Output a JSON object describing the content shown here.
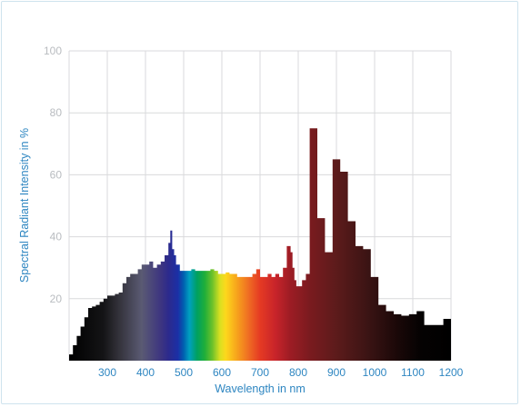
{
  "chart_data": {
    "type": "area",
    "xlabel": "Wavelength in nm",
    "ylabel": "Spectral Radiant Intensity in %",
    "xlim": [
      200,
      1200
    ],
    "ylim": [
      0,
      100
    ],
    "xticks": [
      "300",
      "400",
      "500",
      "600",
      "700",
      "800",
      "900",
      "1000",
      "1100",
      "1200"
    ],
    "yticks": [
      "20",
      "40",
      "60",
      "80",
      "100"
    ],
    "grid": true,
    "series": [
      {
        "x": [
          200,
          210,
          220,
          230,
          240,
          250,
          260,
          270,
          280,
          290,
          300,
          310,
          320,
          330,
          340,
          350,
          360,
          370,
          380,
          390,
          400,
          410,
          420,
          430,
          440,
          450,
          460,
          465,
          470,
          475,
          480,
          490,
          500,
          510,
          520,
          530,
          540,
          550,
          560,
          570,
          580,
          590,
          600,
          610,
          620,
          630,
          640,
          650,
          660,
          670,
          680,
          690,
          700,
          710,
          720,
          730,
          740,
          750,
          760,
          770,
          780,
          785,
          790,
          795,
          800,
          810,
          820,
          830,
          840,
          850,
          860,
          870,
          880,
          890,
          900,
          910,
          920,
          930,
          940,
          950,
          960,
          970,
          980,
          990,
          1000,
          1010,
          1020,
          1030,
          1040,
          1050,
          1060,
          1070,
          1080,
          1090,
          1100,
          1110,
          1120,
          1130,
          1140,
          1150,
          1160,
          1170,
          1180,
          1190,
          1200
        ],
        "y": [
          2,
          5,
          8,
          11,
          14,
          17,
          17.5,
          18,
          19,
          20,
          21,
          21,
          21.5,
          22,
          25,
          27,
          28,
          28,
          29.5,
          31,
          31,
          32,
          30,
          31,
          32,
          34,
          38,
          42,
          36,
          34,
          31,
          29,
          29,
          29,
          29.5,
          29,
          29,
          29,
          29,
          29.5,
          29,
          28,
          28,
          28.5,
          28,
          28,
          27,
          27,
          27,
          27,
          28,
          29.5,
          27,
          27,
          28,
          27,
          28,
          27,
          30,
          37,
          35,
          30,
          26,
          24,
          24,
          26,
          28,
          75,
          75,
          46,
          46,
          35,
          35,
          65,
          65,
          61,
          61,
          45,
          45,
          37,
          37,
          36,
          36,
          27,
          27,
          18,
          18,
          16,
          16,
          15,
          15,
          14.5,
          14.5,
          15,
          15,
          16,
          16,
          11.5,
          11.5,
          11.5,
          11.5,
          11.5,
          13.5,
          13.5,
          13.5
        ]
      }
    ]
  }
}
